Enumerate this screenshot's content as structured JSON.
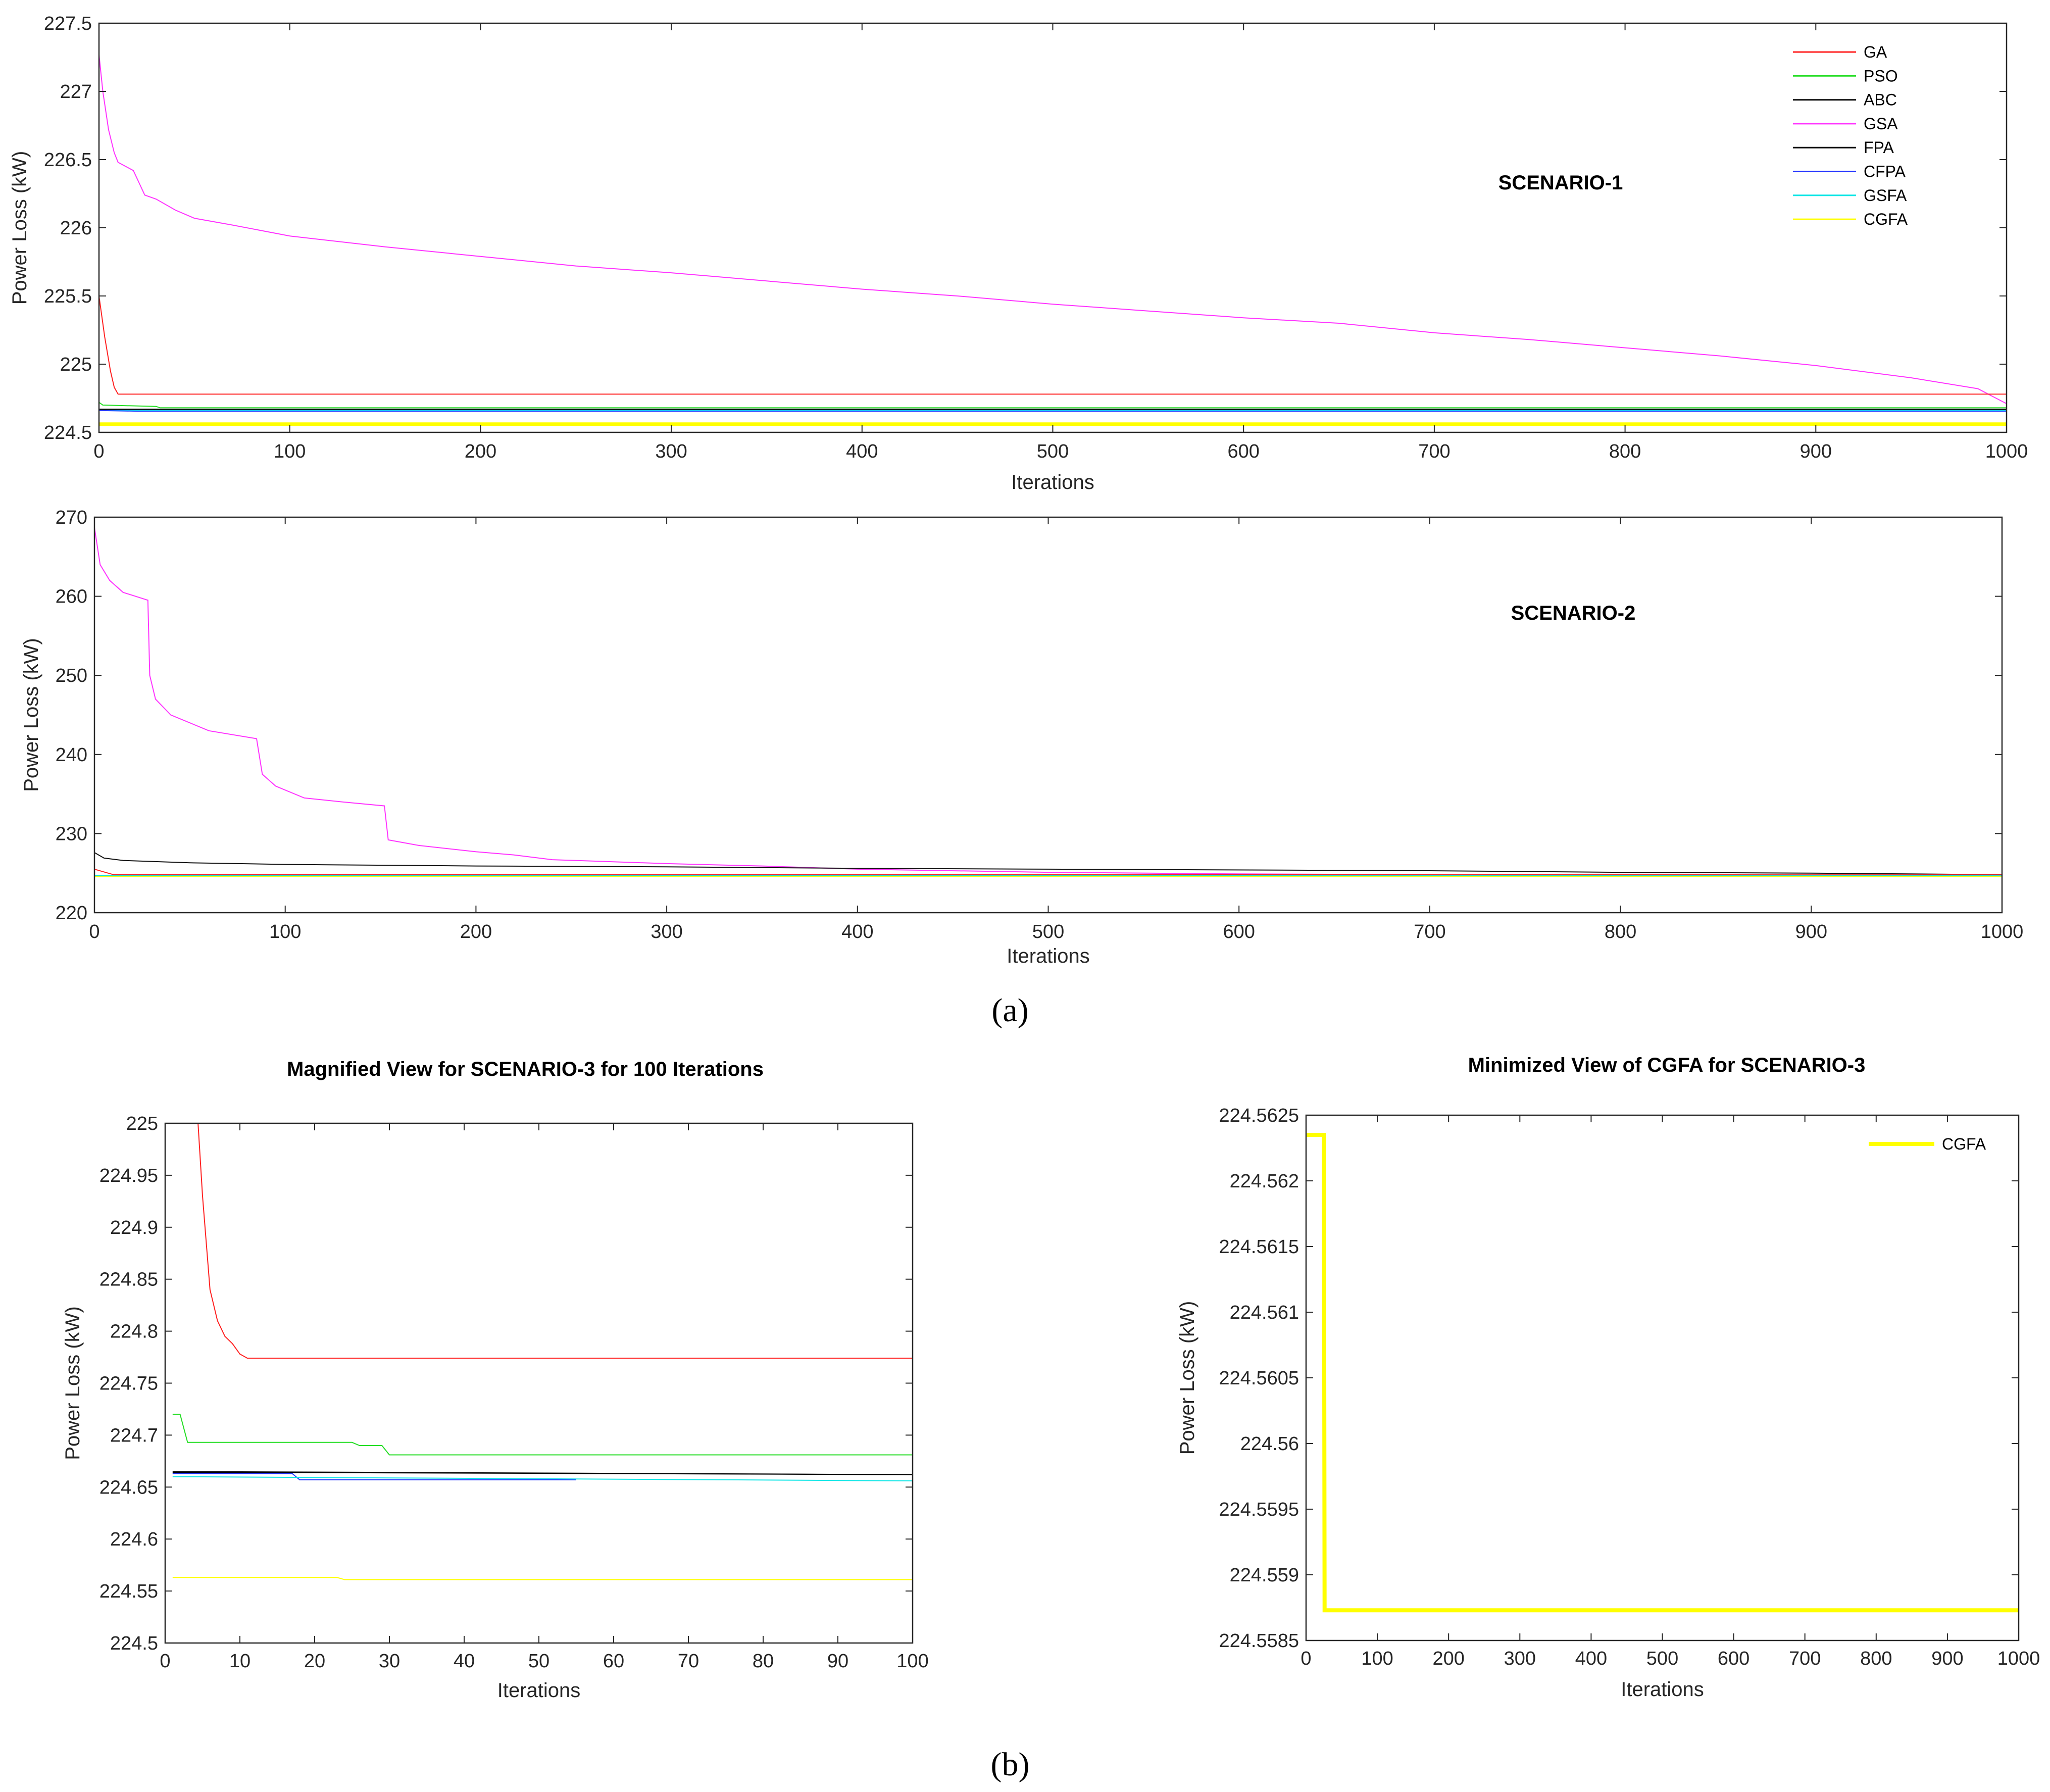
{
  "figure": {
    "caption_a": "(a)",
    "caption_b": "(b)"
  },
  "series_colors": {
    "GA": "#ff2020",
    "PSO": "#22dd22",
    "ABC": "#111111",
    "GSA": "#ff33ff",
    "FPA": "#000000",
    "CFPA": "#2233ff",
    "GSFA": "#11e6e6",
    "CGFA": "#ffff00"
  },
  "chart_data": [
    {
      "id": "scenario1",
      "type": "line",
      "title": "SCENARIO-1",
      "xlabel": "Iterations",
      "ylabel": "Power Loss (kW)",
      "xlim": [
        0,
        1000
      ],
      "ylim": [
        224.5,
        227.5
      ],
      "xticks": [
        "0",
        "100",
        "200",
        "300",
        "400",
        "500",
        "600",
        "700",
        "800",
        "900",
        "1000"
      ],
      "yticks": [
        "224.5",
        "225",
        "225.5",
        "226",
        "226.5",
        "227",
        "227.5"
      ],
      "legend": [
        "GA",
        "PSO",
        "ABC",
        "GSA",
        "FPA",
        "CFPA",
        "GSFA",
        "CGFA"
      ],
      "legend_position": "top-right",
      "series": [
        {
          "name": "GSA",
          "width": 2,
          "points": [
            [
              0,
              227.27
            ],
            [
              2,
              227.0
            ],
            [
              5,
              226.72
            ],
            [
              8,
              226.55
            ],
            [
              10,
              226.48
            ],
            [
              14,
              226.45
            ],
            [
              18,
              226.42
            ],
            [
              22,
              226.3
            ],
            [
              24,
              226.24
            ],
            [
              30,
              226.21
            ],
            [
              40,
              226.13
            ],
            [
              50,
              226.07
            ],
            [
              70,
              226.02
            ],
            [
              100,
              225.94
            ],
            [
              150,
              225.86
            ],
            [
              200,
              225.79
            ],
            [
              250,
              225.72
            ],
            [
              300,
              225.67
            ],
            [
              350,
              225.61
            ],
            [
              400,
              225.55
            ],
            [
              450,
              225.5
            ],
            [
              500,
              225.44
            ],
            [
              550,
              225.39
            ],
            [
              600,
              225.34
            ],
            [
              650,
              225.3
            ],
            [
              700,
              225.23
            ],
            [
              750,
              225.18
            ],
            [
              800,
              225.12
            ],
            [
              850,
              225.06
            ],
            [
              900,
              224.99
            ],
            [
              950,
              224.9
            ],
            [
              985,
              224.82
            ],
            [
              1000,
              224.71
            ]
          ]
        },
        {
          "name": "GA",
          "width": 2,
          "points": [
            [
              0,
              225.5
            ],
            [
              3,
              225.2
            ],
            [
              6,
              224.95
            ],
            [
              8,
              224.83
            ],
            [
              10,
              224.78
            ],
            [
              1000,
              224.78
            ]
          ]
        },
        {
          "name": "PSO",
          "width": 2,
          "points": [
            [
              0,
              224.72
            ],
            [
              2,
              224.7
            ],
            [
              30,
              224.69
            ],
            [
              32,
              224.68
            ],
            [
              1000,
              224.68
            ]
          ]
        },
        {
          "name": "ABC",
          "width": 2,
          "points": [
            [
              0,
              224.67
            ],
            [
              1000,
              224.67
            ]
          ]
        },
        {
          "name": "FPA",
          "width": 2,
          "points": [
            [
              0,
              224.665
            ],
            [
              1000,
              224.665
            ]
          ]
        },
        {
          "name": "GSFA",
          "width": 2,
          "points": [
            [
              0,
              224.66
            ],
            [
              1000,
              224.66
            ]
          ]
        },
        {
          "name": "CFPA",
          "width": 2,
          "points": [
            [
              0,
              224.66
            ],
            [
              20,
              224.655
            ],
            [
              1000,
              224.655
            ]
          ]
        },
        {
          "name": "CGFA",
          "width": 7,
          "points": [
            [
              0,
              224.56
            ],
            [
              1000,
              224.56
            ]
          ]
        }
      ]
    },
    {
      "id": "scenario2",
      "type": "line",
      "title": "SCENARIO-2",
      "xlabel": "Iterations",
      "ylabel": "Power Loss (kW)",
      "xlim": [
        0,
        1000
      ],
      "ylim": [
        220,
        270
      ],
      "xticks": [
        "0",
        "100",
        "200",
        "300",
        "400",
        "500",
        "600",
        "700",
        "800",
        "900",
        "1000"
      ],
      "yticks": [
        "220",
        "230",
        "240",
        "250",
        "260",
        "270"
      ],
      "series": [
        {
          "name": "GSA",
          "width": 2,
          "points": [
            [
              0,
              268.7
            ],
            [
              3,
              264.0
            ],
            [
              8,
              262.0
            ],
            [
              15,
              260.5
            ],
            [
              28,
              259.5
            ],
            [
              29,
              250
            ],
            [
              32,
              247
            ],
            [
              40,
              245
            ],
            [
              60,
              243
            ],
            [
              85,
              242
            ],
            [
              88,
              237.5
            ],
            [
              95,
              236
            ],
            [
              110,
              234.5
            ],
            [
              130,
              234
            ],
            [
              152,
              233.5
            ],
            [
              154,
              229.2
            ],
            [
              170,
              228.5
            ],
            [
              200,
              227.7
            ],
            [
              220,
              227.3
            ],
            [
              240,
              226.7
            ],
            [
              300,
              226.2
            ],
            [
              350,
              225.9
            ],
            [
              400,
              225.5
            ],
            [
              500,
              225.1
            ],
            [
              600,
              224.9
            ],
            [
              700,
              224.8
            ],
            [
              800,
              224.7
            ],
            [
              1000,
              224.7
            ]
          ]
        },
        {
          "name": "ABC",
          "width": 2,
          "points": [
            [
              0,
              227.6
            ],
            [
              5,
              226.9
            ],
            [
              15,
              226.6
            ],
            [
              50,
              226.3
            ],
            [
              100,
              226.1
            ],
            [
              200,
              225.9
            ],
            [
              300,
              225.8
            ],
            [
              400,
              225.6
            ],
            [
              500,
              225.5
            ],
            [
              700,
              225.3
            ],
            [
              800,
              225.1
            ],
            [
              900,
              225.0
            ],
            [
              1000,
              224.8
            ]
          ]
        },
        {
          "name": "GA",
          "width": 2,
          "points": [
            [
              0,
              225.5
            ],
            [
              10,
              224.8
            ],
            [
              1000,
              224.78
            ]
          ]
        },
        {
          "name": "PSO",
          "width": 2,
          "points": [
            [
              0,
              224.72
            ],
            [
              1000,
              224.68
            ]
          ]
        },
        {
          "name": "GSFA",
          "width": 2,
          "points": [
            [
              0,
              224.66
            ],
            [
              1000,
              224.66
            ]
          ]
        },
        {
          "name": "CGFA",
          "width": 2,
          "points": [
            [
              0,
              224.56
            ],
            [
              1000,
              224.56
            ]
          ]
        }
      ]
    },
    {
      "id": "scenario3-magnified",
      "type": "line",
      "title": "Magnified View for SCENARIO-3 for 100 Iterations",
      "xlabel": "Iterations",
      "ylabel": "Power Loss (kW)",
      "xlim": [
        0,
        100
      ],
      "ylim": [
        224.5,
        225
      ],
      "xticks": [
        "0",
        "10",
        "20",
        "30",
        "40",
        "50",
        "60",
        "70",
        "80",
        "90",
        "100"
      ],
      "yticks": [
        "224.5",
        "224.55",
        "224.6",
        "224.65",
        "224.7",
        "224.75",
        "224.8",
        "224.85",
        "224.9",
        "224.95",
        "225"
      ],
      "series": [
        {
          "name": "GA",
          "width": 2,
          "points": [
            [
              4.4,
              225.0
            ],
            [
              5,
              224.93
            ],
            [
              6,
              224.84
            ],
            [
              7,
              224.81
            ],
            [
              8,
              224.795
            ],
            [
              9,
              224.788
            ],
            [
              10,
              224.778
            ],
            [
              11,
              224.774
            ],
            [
              100,
              224.774
            ]
          ]
        },
        {
          "name": "PSO",
          "width": 2,
          "points": [
            [
              1,
              224.72
            ],
            [
              2,
              224.72
            ],
            [
              3,
              224.693
            ],
            [
              25,
              224.693
            ],
            [
              26,
              224.69
            ],
            [
              29,
              224.69
            ],
            [
              30,
              224.681
            ],
            [
              100,
              224.681
            ]
          ]
        },
        {
          "name": "ABC",
          "width": 2,
          "points": [
            [
              1,
              224.665
            ],
            [
              100,
              224.662
            ]
          ]
        },
        {
          "name": "FPA",
          "width": 2,
          "points": [
            [
              1,
              224.664
            ],
            [
              18,
              224.664
            ],
            [
              100,
              224.662
            ]
          ]
        },
        {
          "name": "CFPA",
          "width": 2,
          "points": [
            [
              1,
              224.663
            ],
            [
              17,
              224.663
            ],
            [
              18,
              224.657
            ],
            [
              55,
              224.657
            ]
          ]
        },
        {
          "name": "GSFA",
          "width": 2,
          "points": [
            [
              1,
              224.66
            ],
            [
              100,
              224.656
            ]
          ]
        },
        {
          "name": "CGFA",
          "width": 2,
          "points": [
            [
              1,
              224.563
            ],
            [
              23,
              224.563
            ],
            [
              24,
              224.561
            ],
            [
              100,
              224.561
            ]
          ]
        }
      ]
    },
    {
      "id": "scenario3-cgfa",
      "type": "line",
      "title": "Minimized View of CGFA for SCENARIO-3",
      "xlabel": "Iterations",
      "ylabel": "Power Loss (kW)",
      "xlim": [
        0,
        1000
      ],
      "ylim": [
        224.5585,
        224.5625
      ],
      "xticks": [
        "0",
        "100",
        "200",
        "300",
        "400",
        "500",
        "600",
        "700",
        "800",
        "900",
        "1000"
      ],
      "yticks": [
        "224.5585",
        "224.559",
        "224.5595",
        "224.56",
        "224.5605",
        "224.561",
        "224.5615",
        "224.562",
        "224.5625"
      ],
      "legend": [
        "CGFA"
      ],
      "legend_position": "top-right",
      "series": [
        {
          "name": "CGFA",
          "width": 8,
          "points": [
            [
              1,
              224.56235
            ],
            [
              25,
              224.56235
            ],
            [
              26,
              224.55873
            ],
            [
              1000,
              224.55873
            ]
          ]
        }
      ]
    }
  ]
}
